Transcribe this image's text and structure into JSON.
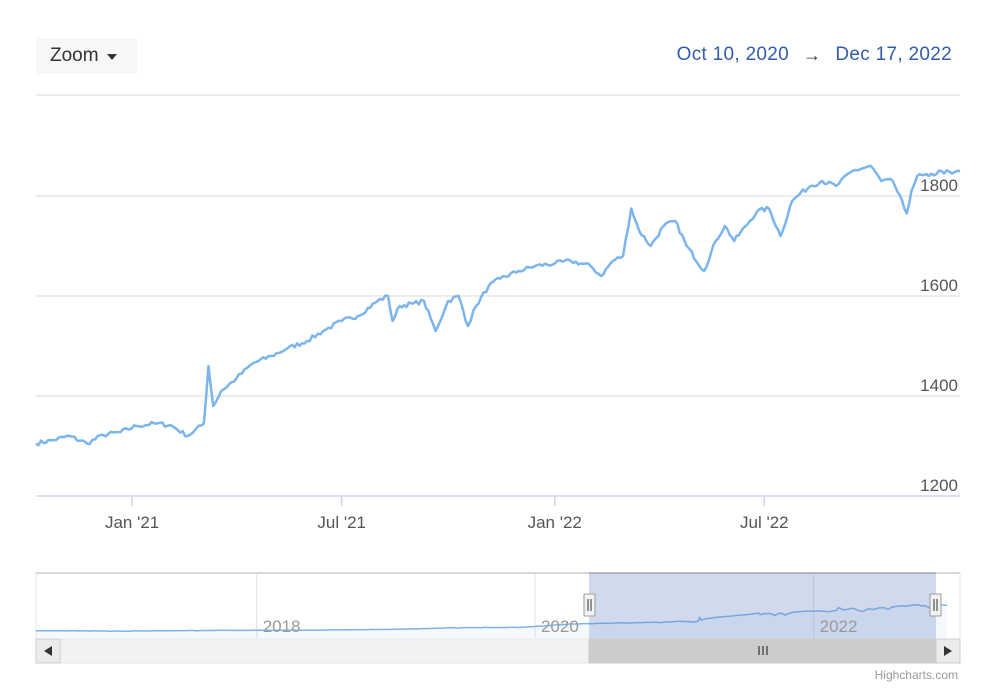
{
  "range_selector": {
    "zoom_label": "Zoom",
    "from_date": "Oct 10, 2020",
    "arrow": "→",
    "to_date": "Dec 17, 2022"
  },
  "credits": "Highcharts.com",
  "chart_data": {
    "type": "line",
    "x_tick_labels": [
      "Jan '21",
      "Jul '21",
      "Jan '22",
      "Jul '22"
    ],
    "y_tick_labels": [
      "1200",
      "1400",
      "1600",
      "1800"
    ],
    "ylim": [
      1200,
      2000
    ],
    "xlim": [
      "2020-10-10",
      "2022-12-17"
    ],
    "grid": true,
    "line_color": "#7cb5ec",
    "series": [
      {
        "x": [
          "2020-10-10",
          "2020-10-25",
          "2020-11-08",
          "2020-11-23",
          "2020-12-07",
          "2020-12-22",
          "2021-01-05",
          "2021-01-20",
          "2021-02-03",
          "2021-02-18",
          "2021-03-04",
          "2021-03-08",
          "2021-03-12",
          "2021-03-19",
          "2021-04-01",
          "2021-04-15",
          "2021-05-01",
          "2021-05-15",
          "2021-06-01",
          "2021-06-15",
          "2021-07-01",
          "2021-07-15",
          "2021-08-01",
          "2021-08-10",
          "2021-08-14",
          "2021-08-20",
          "2021-09-01",
          "2021-09-10",
          "2021-09-20",
          "2021-10-01",
          "2021-10-10",
          "2021-10-18",
          "2021-10-25",
          "2021-11-05",
          "2021-11-15",
          "2021-12-01",
          "2021-12-15",
          "2022-01-01",
          "2022-01-15",
          "2022-02-01",
          "2022-02-10",
          "2022-02-20",
          "2022-03-01",
          "2022-03-08",
          "2022-03-15",
          "2022-03-25",
          "2022-04-05",
          "2022-04-15",
          "2022-04-25",
          "2022-05-10",
          "2022-05-20",
          "2022-05-28",
          "2022-06-05",
          "2022-06-15",
          "2022-06-25",
          "2022-07-05",
          "2022-07-15",
          "2022-07-25",
          "2022-08-01",
          "2022-08-10",
          "2022-08-20",
          "2022-09-01",
          "2022-09-15",
          "2022-10-01",
          "2022-10-10",
          "2022-10-20",
          "2022-11-01",
          "2022-11-05",
          "2022-11-10",
          "2022-11-20",
          "2022-12-01",
          "2022-12-10",
          "2022-12-17"
        ],
        "values": [
          1305,
          1312,
          1320,
          1305,
          1322,
          1328,
          1340,
          1345,
          1342,
          1320,
          1345,
          1460,
          1380,
          1410,
          1435,
          1465,
          1480,
          1495,
          1510,
          1530,
          1550,
          1560,
          1590,
          1600,
          1550,
          1580,
          1585,
          1590,
          1530,
          1590,
          1600,
          1540,
          1580,
          1620,
          1635,
          1650,
          1660,
          1665,
          1670,
          1660,
          1640,
          1670,
          1680,
          1775,
          1730,
          1700,
          1740,
          1750,
          1700,
          1650,
          1710,
          1740,
          1710,
          1740,
          1770,
          1775,
          1720,
          1790,
          1805,
          1820,
          1830,
          1820,
          1850,
          1860,
          1830,
          1830,
          1765,
          1810,
          1840,
          1840,
          1850,
          1845,
          1850
        ]
      }
    ],
    "navigator": {
      "x_tick_labels": [
        "2018",
        "2020",
        "2022"
      ],
      "selected_from": "2020-10-10",
      "selected_to": "2022-12-17"
    }
  }
}
